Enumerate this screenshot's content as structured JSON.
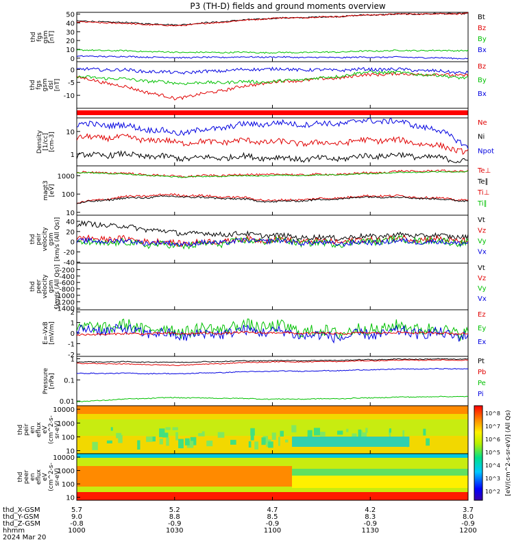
{
  "title": "P3 (TH-D) fields and ground moments overview",
  "panels": [
    {
      "id": "fgs-gsm",
      "ylabel": [
        "thd",
        "fgs",
        "gsm",
        "[nT]"
      ],
      "yticks": [
        0,
        10,
        20,
        30,
        40,
        50
      ],
      "legend": [
        {
          "label": "Bt",
          "color": "#000000"
        },
        {
          "label": "Bz",
          "color": "#e00000"
        },
        {
          "label": "By",
          "color": "#00c000"
        },
        {
          "label": "Bx",
          "color": "#0000e0"
        }
      ]
    },
    {
      "id": "fgs-dsl",
      "ylabel": [
        "thd",
        "fgs",
        "gsm",
        "dsl",
        "[nT]"
      ],
      "yticks": [
        -10,
        -5,
        0
      ],
      "legend": [
        {
          "label": "Bz",
          "color": "#e00000"
        },
        {
          "label": "By",
          "color": "#00c000"
        },
        {
          "label": "Bx",
          "color": "#0000e0"
        }
      ]
    },
    {
      "id": "mode-bar",
      "ylabel": [],
      "yticks": [],
      "legend": []
    },
    {
      "id": "density",
      "ylabel": [
        "Density",
        "[1/cc]",
        "[cm-3]"
      ],
      "yticks": [
        1,
        10
      ],
      "legend": [
        {
          "label": "Ne",
          "color": "#e00000"
        },
        {
          "label": "Ni",
          "color": "#000000"
        },
        {
          "label": "Npot",
          "color": "#0000e0"
        }
      ]
    },
    {
      "id": "temperature",
      "ylabel": [
        "magt3",
        "[eV]"
      ],
      "yticks": [
        10,
        100,
        1000
      ],
      "legend": [
        {
          "label": "Te⊥",
          "color": "#e00000"
        },
        {
          "label": "Te∥",
          "color": "#000000"
        },
        {
          "label": "Ti⊥",
          "color": "#e00000"
        },
        {
          "label": "Ti∥",
          "color": "#00c000"
        }
      ]
    },
    {
      "id": "ion-velocity",
      "ylabel": [
        "thd",
        "peir",
        "velocity",
        "gsm",
        "[km/s (All Qs)]"
      ],
      "yticks": [
        -40,
        -20,
        0,
        20,
        40
      ],
      "legend": [
        {
          "label": "Vt",
          "color": "#000000"
        },
        {
          "label": "Vz",
          "color": "#e00000"
        },
        {
          "label": "Vy",
          "color": "#00c000"
        },
        {
          "label": "Vx",
          "color": "#0000e0"
        }
      ]
    },
    {
      "id": "electron-velocity",
      "ylabel": [
        "thd",
        "peer",
        "velocity",
        "gsm",
        "[km/s (All Qs)]"
      ],
      "yticks": [
        -1400,
        -1200,
        -1000,
        -800,
        -600,
        -400,
        -200
      ],
      "legend": [
        {
          "label": "Vt",
          "color": "#000000"
        },
        {
          "label": "Vz",
          "color": "#e00000"
        },
        {
          "label": "Vy",
          "color": "#00c000"
        },
        {
          "label": "Vx",
          "color": "#0000e0"
        }
      ]
    },
    {
      "id": "efield",
      "ylabel": [
        "E=-VxB",
        "[mV/m]"
      ],
      "yticks": [
        -2,
        -1,
        0,
        1,
        2
      ],
      "legend": [
        {
          "label": "Ez",
          "color": "#e00000"
        },
        {
          "label": "Ey",
          "color": "#00c000"
        },
        {
          "label": "Ex",
          "color": "#0000e0"
        }
      ]
    },
    {
      "id": "pressure",
      "ylabel": [
        "Pressure",
        "[nPa]"
      ],
      "yticks": [
        0.01,
        0.1,
        1.0
      ],
      "legend": [
        {
          "label": "Pt",
          "color": "#000000"
        },
        {
          "label": "Pb",
          "color": "#e00000"
        },
        {
          "label": "Pe",
          "color": "#00c000"
        },
        {
          "label": "Pi",
          "color": "#0000e0"
        }
      ]
    },
    {
      "id": "ion-spectrogram",
      "ylabel": [
        "thd",
        "peir",
        "en",
        "eflux",
        "eV",
        "(cm^2-s-",
        "sr-eV)"
      ],
      "yticks": [
        10,
        100,
        1000,
        10000
      ],
      "legend": []
    },
    {
      "id": "electron-spectrogram",
      "ylabel": [
        "thd",
        "peer",
        "en",
        "eflux",
        "eV",
        "(cm^2-s-",
        "sr-eV)"
      ],
      "yticks": [
        10,
        100,
        1000,
        10000
      ],
      "legend": []
    }
  ],
  "colorbar": {
    "label": "[eV/(cm^2-s-sr-eV)] (All Qs)",
    "ticks": [
      "10^8",
      "10^7",
      "10^6",
      "10^5",
      "10^4",
      "10^3",
      "10^2"
    ]
  },
  "xaxis": {
    "row_labels": [
      "thd_X-GSM",
      "thd_Y-GSM",
      "thd_Z-GSM",
      "hhmm",
      "2024 Mar 20"
    ],
    "columns": [
      {
        "x_gsm": "5.7",
        "y_gsm": "9.0",
        "z_gsm": "-0.8",
        "hhmm": "1000"
      },
      {
        "x_gsm": "5.2",
        "y_gsm": "8.8",
        "z_gsm": "-0.9",
        "hhmm": "1030"
      },
      {
        "x_gsm": "4.7",
        "y_gsm": "8.5",
        "z_gsm": "-0.9",
        "hhmm": "1100"
      },
      {
        "x_gsm": "4.2",
        "y_gsm": "8.3",
        "z_gsm": "-0.9",
        "hhmm": "1130"
      },
      {
        "x_gsm": "3.7",
        "y_gsm": "8.0",
        "z_gsm": "-0.9",
        "hhmm": "1200"
      }
    ]
  },
  "chart_data": {
    "type": "line",
    "title": "P3 (TH-D) fields and ground moments overview",
    "x": [
      "1000",
      "1030",
      "1100",
      "1130",
      "1200"
    ],
    "series": [
      {
        "name": "Bt",
        "panel": "fgs-gsm",
        "values": [
          42,
          38,
          45,
          49,
          51
        ]
      },
      {
        "name": "Bz",
        "panel": "fgs-gsm",
        "values": [
          41,
          37,
          45,
          49,
          51
        ]
      },
      {
        "name": "By",
        "panel": "fgs-gsm",
        "values": [
          9,
          7,
          6,
          8,
          9
        ]
      },
      {
        "name": "Bx",
        "panel": "fgs-gsm",
        "values": [
          2,
          1,
          1,
          1,
          0
        ]
      },
      {
        "name": "Bz",
        "panel": "fgs-dsl",
        "values": [
          -3,
          -11,
          -5,
          -2,
          -2
        ]
      },
      {
        "name": "By",
        "panel": "fgs-dsl",
        "values": [
          -3,
          -5,
          -5,
          -1,
          -3
        ]
      },
      {
        "name": "Bx",
        "panel": "fgs-dsl",
        "values": [
          0,
          -1,
          0,
          0,
          -1
        ]
      },
      {
        "name": "Ne",
        "panel": "density",
        "values": [
          5,
          4,
          3,
          4,
          1.5
        ]
      },
      {
        "name": "Ni",
        "panel": "density",
        "values": [
          0.8,
          0.8,
          0.6,
          0.8,
          0.6
        ]
      },
      {
        "name": "Npot",
        "panel": "density",
        "values": [
          20,
          10,
          20,
          30,
          2
        ]
      },
      {
        "name": "Te⊥",
        "panel": "temperature",
        "values": [
          1500,
          1000,
          1100,
          1400,
          2000
        ]
      },
      {
        "name": "Ti⊥",
        "panel": "temperature",
        "values": [
          30,
          100,
          40,
          80,
          50
        ]
      },
      {
        "name": "Vt",
        "panel": "ion-velocity",
        "values": [
          35,
          20,
          10,
          10,
          12
        ]
      },
      {
        "name": "Pt",
        "panel": "pressure",
        "values": [
          0.7,
          0.7,
          0.8,
          0.9,
          1.0
        ]
      },
      {
        "name": "Pb",
        "panel": "pressure",
        "values": [
          0.6,
          0.5,
          0.7,
          0.8,
          0.9
        ]
      },
      {
        "name": "Pe",
        "panel": "pressure",
        "values": [
          0.009,
          0.015,
          0.012,
          0.014,
          0.017
        ]
      },
      {
        "name": "Pi",
        "panel": "pressure",
        "values": [
          0.2,
          0.2,
          0.25,
          0.3,
          0.35
        ]
      }
    ]
  }
}
